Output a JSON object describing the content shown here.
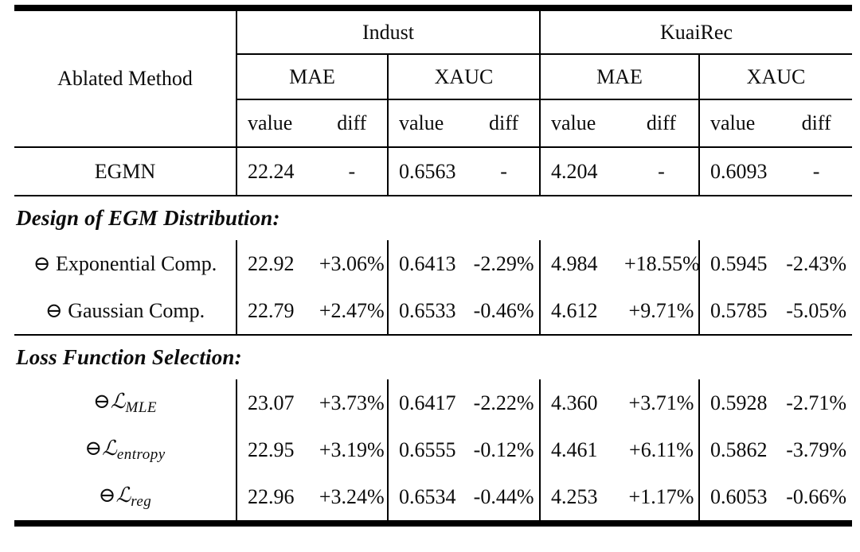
{
  "table": {
    "header": {
      "method_col": "Ablated Method",
      "datasets": [
        "Indust",
        "KuaiRec"
      ],
      "metrics": [
        "MAE",
        "XAUC",
        "MAE",
        "XAUC"
      ],
      "subcols": {
        "value": "value",
        "diff": "diff"
      }
    },
    "baseline": {
      "method": "EGMN",
      "cells": [
        "22.24",
        "-",
        "0.6563",
        "-",
        "4.204",
        "-",
        "0.6093",
        "-"
      ]
    },
    "sections": [
      {
        "title": "Design of EGM Distribution:",
        "rows": [
          {
            "method_main": "⊖ Exponential Comp.",
            "method_sub": "",
            "cells": [
              "22.92",
              "+3.06%",
              "0.6413",
              "-2.29%",
              "4.984",
              "+18.55%",
              "0.5945",
              "-2.43%"
            ]
          },
          {
            "method_main": "⊖ Gaussian Comp.",
            "method_sub": "",
            "cells": [
              "22.79",
              "+2.47%",
              "0.6533",
              "-0.46%",
              "4.612",
              "+9.71%",
              "0.5785",
              "-5.05%"
            ]
          }
        ]
      },
      {
        "title": "Loss Function Selection:",
        "rows": [
          {
            "method_main": "⊖ℒ",
            "method_sub": "MLE",
            "cells": [
              "23.07",
              "+3.73%",
              "0.6417",
              "-2.22%",
              "4.360",
              "+3.71%",
              "0.5928",
              "-2.71%"
            ]
          },
          {
            "method_main": "⊖ℒ",
            "method_sub": "entropy",
            "cells": [
              "22.95",
              "+3.19%",
              "0.6555",
              "-0.12%",
              "4.461",
              "+6.11%",
              "0.5862",
              "-3.79%"
            ]
          },
          {
            "method_main": "⊖ℒ",
            "method_sub": "reg",
            "cells": [
              "22.96",
              "+3.24%",
              "0.6534",
              "-0.44%",
              "4.253",
              "+1.17%",
              "0.6053",
              "-0.66%"
            ]
          }
        ]
      }
    ]
  }
}
